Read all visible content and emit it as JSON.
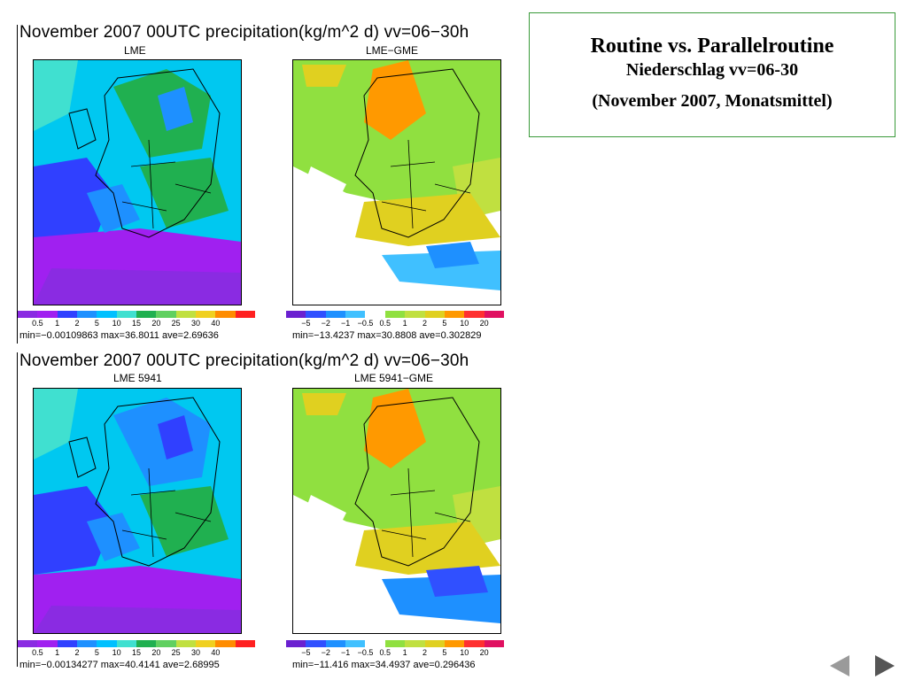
{
  "header_box": {
    "line1": "Routine vs. Parallelroutine",
    "line2": "Niederschlag vv=06-30",
    "line3": "(November 2007, Monatsmittel)"
  },
  "panels": [
    {
      "title": "November 2007 00UTC precipitation(kg/m^2 d) vv=06−30h",
      "left_label": "LME",
      "right_label": "LME−GME",
      "left_ticks": [
        "0.5",
        "1",
        "2",
        "5",
        "10",
        "15",
        "20",
        "25",
        "30",
        "40"
      ],
      "right_ticks": [
        "−5",
        "−2",
        "−1",
        "−0.5",
        "0.5",
        "1",
        "2",
        "5",
        "10",
        "20"
      ],
      "left_stats": "min=−0.00109863  max=36.8011  ave=2.69636",
      "right_stats": "min=−13.4237  max=30.8808  ave=0.302829"
    },
    {
      "title": "November 2007 00UTC precipitation(kg/m^2 d) vv=06−30h",
      "left_label": "LME 5941",
      "right_label": "LME 5941−GME",
      "left_ticks": [
        "0.5",
        "1",
        "2",
        "5",
        "10",
        "15",
        "20",
        "25",
        "30",
        "40"
      ],
      "right_ticks": [
        "−5",
        "−2",
        "−1",
        "−0.5",
        "0.5",
        "1",
        "2",
        "5",
        "10",
        "20"
      ],
      "left_stats": "min=−0.00134277  max=40.4141  ave=2.68995",
      "right_stats": "min=−11.416  max=34.4937  ave=0.296436"
    }
  ],
  "colors": {
    "abs_scale": [
      "#8a2be2",
      "#a020f0",
      "#3040ff",
      "#1e90ff",
      "#00c0ff",
      "#40e0d0",
      "#20b050",
      "#60d060",
      "#c0e040",
      "#f0d020",
      "#ff8c00",
      "#ff2020"
    ],
    "diff_scale": [
      "#6a20d0",
      "#3050ff",
      "#1e90ff",
      "#40c0ff",
      "#ffffff",
      "#90e040",
      "#c0e040",
      "#e0d020",
      "#ff9900",
      "#ff3030",
      "#e01060"
    ],
    "frame_green": "#3a9a3a"
  },
  "nav": {
    "prev": "previous-slide",
    "next": "next-slide"
  }
}
